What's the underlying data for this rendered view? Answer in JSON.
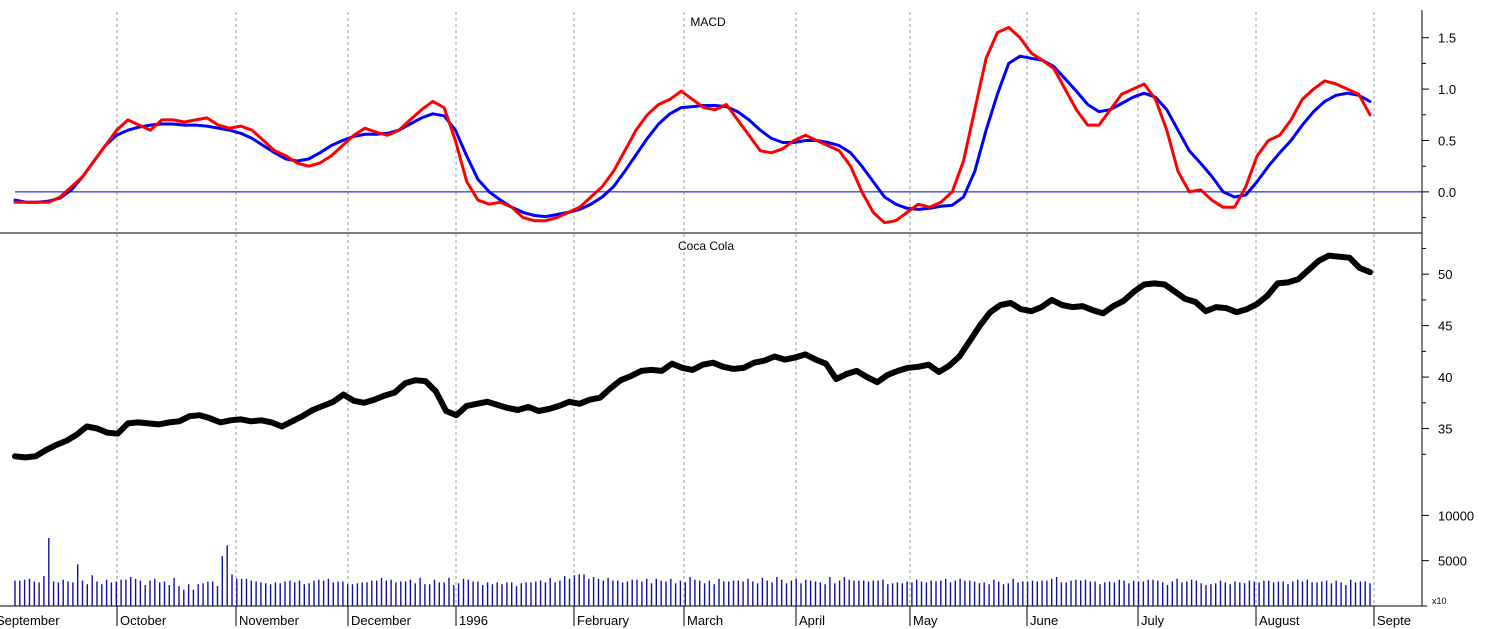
{
  "chart_data": [
    {
      "type": "line",
      "title": "MACD",
      "ylim": [
        -0.4,
        1.75
      ],
      "yticks": [
        0.0,
        0.5,
        1.0,
        1.5
      ],
      "ytick_labels": [
        "0.0",
        "0.5",
        "1.0",
        "1.5"
      ],
      "zero_line": true,
      "grid": "vertical dotted at month starts",
      "series": [
        {
          "color": "#ff0000",
          "values": [
            -0.1,
            -0.1,
            -0.1,
            -0.1,
            -0.05,
            0.05,
            0.15,
            0.3,
            0.45,
            0.6,
            0.7,
            0.65,
            0.6,
            0.7,
            0.7,
            0.68,
            0.7,
            0.72,
            0.65,
            0.62,
            0.64,
            0.6,
            0.5,
            0.4,
            0.35,
            0.28,
            0.25,
            0.28,
            0.35,
            0.45,
            0.55,
            0.62,
            0.58,
            0.55,
            0.6,
            0.7,
            0.8,
            0.88,
            0.82,
            0.5,
            0.1,
            -0.08,
            -0.12,
            -0.1,
            -0.15,
            -0.25,
            -0.28,
            -0.28,
            -0.25,
            -0.2,
            -0.15,
            -0.05,
            0.05,
            0.2,
            0.4,
            0.6,
            0.75,
            0.85,
            0.9,
            0.98,
            0.9,
            0.82,
            0.8,
            0.85,
            0.7,
            0.55,
            0.4,
            0.38,
            0.42,
            0.5,
            0.55,
            0.5,
            0.45,
            0.4,
            0.25,
            0.0,
            -0.2,
            -0.3,
            -0.28,
            -0.2,
            -0.12,
            -0.15,
            -0.1,
            0.0,
            0.3,
            0.8,
            1.3,
            1.55,
            1.6,
            1.5,
            1.35,
            1.28,
            1.2,
            1.0,
            0.8,
            0.65,
            0.65,
            0.8,
            0.95,
            1.0,
            1.05,
            0.9,
            0.6,
            0.2,
            0.0,
            0.02,
            -0.08,
            -0.15,
            -0.15,
            0.05,
            0.35,
            0.5,
            0.55,
            0.7,
            0.9,
            1.0,
            1.08,
            1.05,
            1.0,
            0.95,
            0.75
          ]
        },
        {
          "color": "#0000ff",
          "values": [
            -0.08,
            -0.1,
            -0.1,
            -0.09,
            -0.06,
            0.02,
            0.15,
            0.3,
            0.45,
            0.55,
            0.6,
            0.63,
            0.65,
            0.66,
            0.66,
            0.65,
            0.65,
            0.64,
            0.62,
            0.6,
            0.57,
            0.52,
            0.45,
            0.38,
            0.32,
            0.3,
            0.32,
            0.38,
            0.45,
            0.5,
            0.54,
            0.56,
            0.56,
            0.57,
            0.6,
            0.66,
            0.72,
            0.76,
            0.74,
            0.6,
            0.35,
            0.12,
            0.0,
            -0.08,
            -0.15,
            -0.2,
            -0.23,
            -0.24,
            -0.22,
            -0.2,
            -0.17,
            -0.12,
            -0.05,
            0.05,
            0.2,
            0.36,
            0.52,
            0.66,
            0.76,
            0.82,
            0.83,
            0.84,
            0.84,
            0.83,
            0.78,
            0.7,
            0.6,
            0.52,
            0.48,
            0.48,
            0.5,
            0.5,
            0.48,
            0.45,
            0.38,
            0.25,
            0.1,
            -0.05,
            -0.12,
            -0.16,
            -0.17,
            -0.16,
            -0.14,
            -0.13,
            -0.05,
            0.2,
            0.6,
            0.95,
            1.25,
            1.32,
            1.3,
            1.28,
            1.22,
            1.1,
            0.98,
            0.85,
            0.78,
            0.8,
            0.86,
            0.92,
            0.96,
            0.92,
            0.8,
            0.6,
            0.4,
            0.28,
            0.15,
            0.0,
            -0.05,
            -0.03,
            0.1,
            0.25,
            0.38,
            0.5,
            0.65,
            0.78,
            0.88,
            0.94,
            0.96,
            0.94,
            0.88
          ]
        }
      ]
    },
    {
      "type": "line",
      "title": "Coca Cola",
      "ylim": [
        30,
        54
      ],
      "yticks": [
        35,
        40,
        45,
        50
      ],
      "ytick_labels": [
        "35",
        "40",
        "45",
        "50"
      ],
      "series": [
        {
          "color": "#000000",
          "values": [
            32.3,
            32.2,
            32.3,
            32.9,
            33.4,
            33.8,
            34.4,
            35.2,
            35.0,
            34.6,
            34.5,
            35.5,
            35.6,
            35.5,
            35.4,
            35.6,
            35.7,
            36.2,
            36.3,
            36.0,
            35.6,
            35.8,
            35.9,
            35.7,
            35.8,
            35.6,
            35.2,
            35.7,
            36.2,
            36.8,
            37.2,
            37.6,
            38.3,
            37.7,
            37.5,
            37.8,
            38.2,
            38.5,
            39.4,
            39.7,
            39.6,
            38.6,
            36.7,
            36.3,
            37.2,
            37.4,
            37.6,
            37.3,
            37.0,
            36.8,
            37.1,
            36.7,
            36.9,
            37.2,
            37.6,
            37.4,
            37.8,
            38.0,
            38.9,
            39.7,
            40.1,
            40.6,
            40.7,
            40.6,
            41.3,
            40.9,
            40.7,
            41.2,
            41.4,
            41.0,
            40.8,
            40.9,
            41.4,
            41.6,
            42.0,
            41.7,
            41.9,
            42.2,
            41.7,
            41.3,
            39.8,
            40.3,
            40.6,
            40.0,
            39.5,
            40.2,
            40.6,
            40.9,
            41.0,
            41.2,
            40.5,
            41.1,
            42.0,
            43.5,
            45.0,
            46.3,
            47.0,
            47.2,
            46.6,
            46.4,
            46.8,
            47.5,
            47.0,
            46.8,
            46.9,
            46.5,
            46.2,
            46.9,
            47.4,
            48.3,
            49.0,
            49.1,
            49.0,
            48.3,
            47.6,
            47.3,
            46.4,
            46.8,
            46.7,
            46.3,
            46.6,
            47.1,
            47.9,
            49.1,
            49.2,
            49.5,
            50.4,
            51.3,
            51.8,
            51.7,
            51.6,
            50.6,
            50.2
          ]
        }
      ]
    },
    {
      "type": "bar",
      "title": "",
      "ylim": [
        0,
        15000
      ],
      "yticks": [
        5000,
        10000
      ],
      "ytick_labels": [
        "5000",
        "10000"
      ],
      "multiplier_label": "x10",
      "x_labels": [
        "September",
        "October",
        "November",
        "December",
        "1996",
        "February",
        "March",
        "April",
        "May",
        "June",
        "July",
        "August",
        "Septe"
      ],
      "values": [
        2800,
        2800,
        2900,
        3000,
        2700,
        2600,
        3300,
        7500,
        2700,
        2600,
        2900,
        2700,
        2600,
        4600,
        2800,
        2400,
        3400,
        2700,
        2400,
        2900,
        2600,
        2700,
        2900,
        2900,
        3200,
        3000,
        2800,
        2300,
        2800,
        3000,
        2600,
        2700,
        2300,
        3100,
        2200,
        1800,
        2400,
        1800,
        2400,
        2500,
        2700,
        2700,
        2200,
        5500,
        6700,
        3500,
        3000,
        3000,
        3000,
        2800,
        2700,
        2600,
        2500,
        2400,
        2600,
        2500,
        2700,
        2800,
        2600,
        2800,
        2400,
        2500,
        2800,
        2900,
        2800,
        3000,
        2600,
        2700,
        2700,
        2400,
        2400,
        2500,
        2600,
        2600,
        2800,
        2800,
        3100,
        2800,
        2900,
        2600,
        2700,
        2700,
        2900,
        2500,
        3100,
        2400,
        2400,
        2900,
        2600,
        2600,
        3100,
        2300,
        2500,
        3000,
        2900,
        2700,
        2700,
        2300,
        2600,
        2400,
        2600,
        2400,
        2600,
        2600,
        2200,
        2500,
        2600,
        2600,
        2700,
        2800,
        2600,
        3100,
        2600,
        2800,
        3300,
        3000,
        3400,
        3500,
        3500,
        3000,
        3200,
        3000,
        2800,
        3100,
        2800,
        2800,
        2600,
        2700,
        2900,
        2900,
        2700,
        3000,
        2500,
        3000,
        2800,
        2700,
        3000,
        2500,
        2800,
        2600,
        3200,
        2900,
        2800,
        2500,
        2800,
        2400,
        3000,
        2700,
        2700,
        2800,
        2800,
        2700,
        3000,
        2700,
        2500,
        3100,
        2800,
        2600,
        3200,
        2900,
        2500,
        2800,
        3000,
        2500,
        2900,
        2800,
        2700,
        2600,
        2400,
        3200,
        2500,
        2800,
        3200,
        2900,
        2800,
        2800,
        2800,
        2700,
        2800,
        2800,
        2900,
        2400,
        2500,
        2600,
        2500,
        2700,
        2600,
        2900,
        2700,
        2600,
        2800,
        2700,
        2800,
        3000,
        2600,
        2800,
        3000,
        2800,
        2800,
        2700,
        2500,
        2600,
        2400,
        2900,
        2700,
        2400,
        2500,
        3000,
        2600,
        2700,
        2700,
        2800,
        2700,
        2800,
        2800,
        3000,
        3200,
        2600,
        2600,
        2800,
        2900,
        2800,
        2900,
        2700,
        2700,
        2400,
        2600,
        2700,
        2600,
        2900,
        2800,
        2500,
        2800,
        2700,
        2700,
        2900,
        2900,
        2800,
        2600,
        2300,
        2700,
        3000,
        2600,
        2700,
        2900,
        2800,
        2500,
        2300,
        2400,
        2500,
        2800,
        2600,
        2400,
        2700,
        2600,
        2500,
        2800,
        2700,
        2600,
        2800,
        2800,
        2600,
        2700,
        2700,
        2400,
        2700,
        2900,
        2700,
        2900,
        2600,
        2600,
        2700,
        2800,
        2500,
        2800,
        2600,
        2300,
        2900,
        2600,
        2700,
        2700,
        2500
      ]
    }
  ]
}
